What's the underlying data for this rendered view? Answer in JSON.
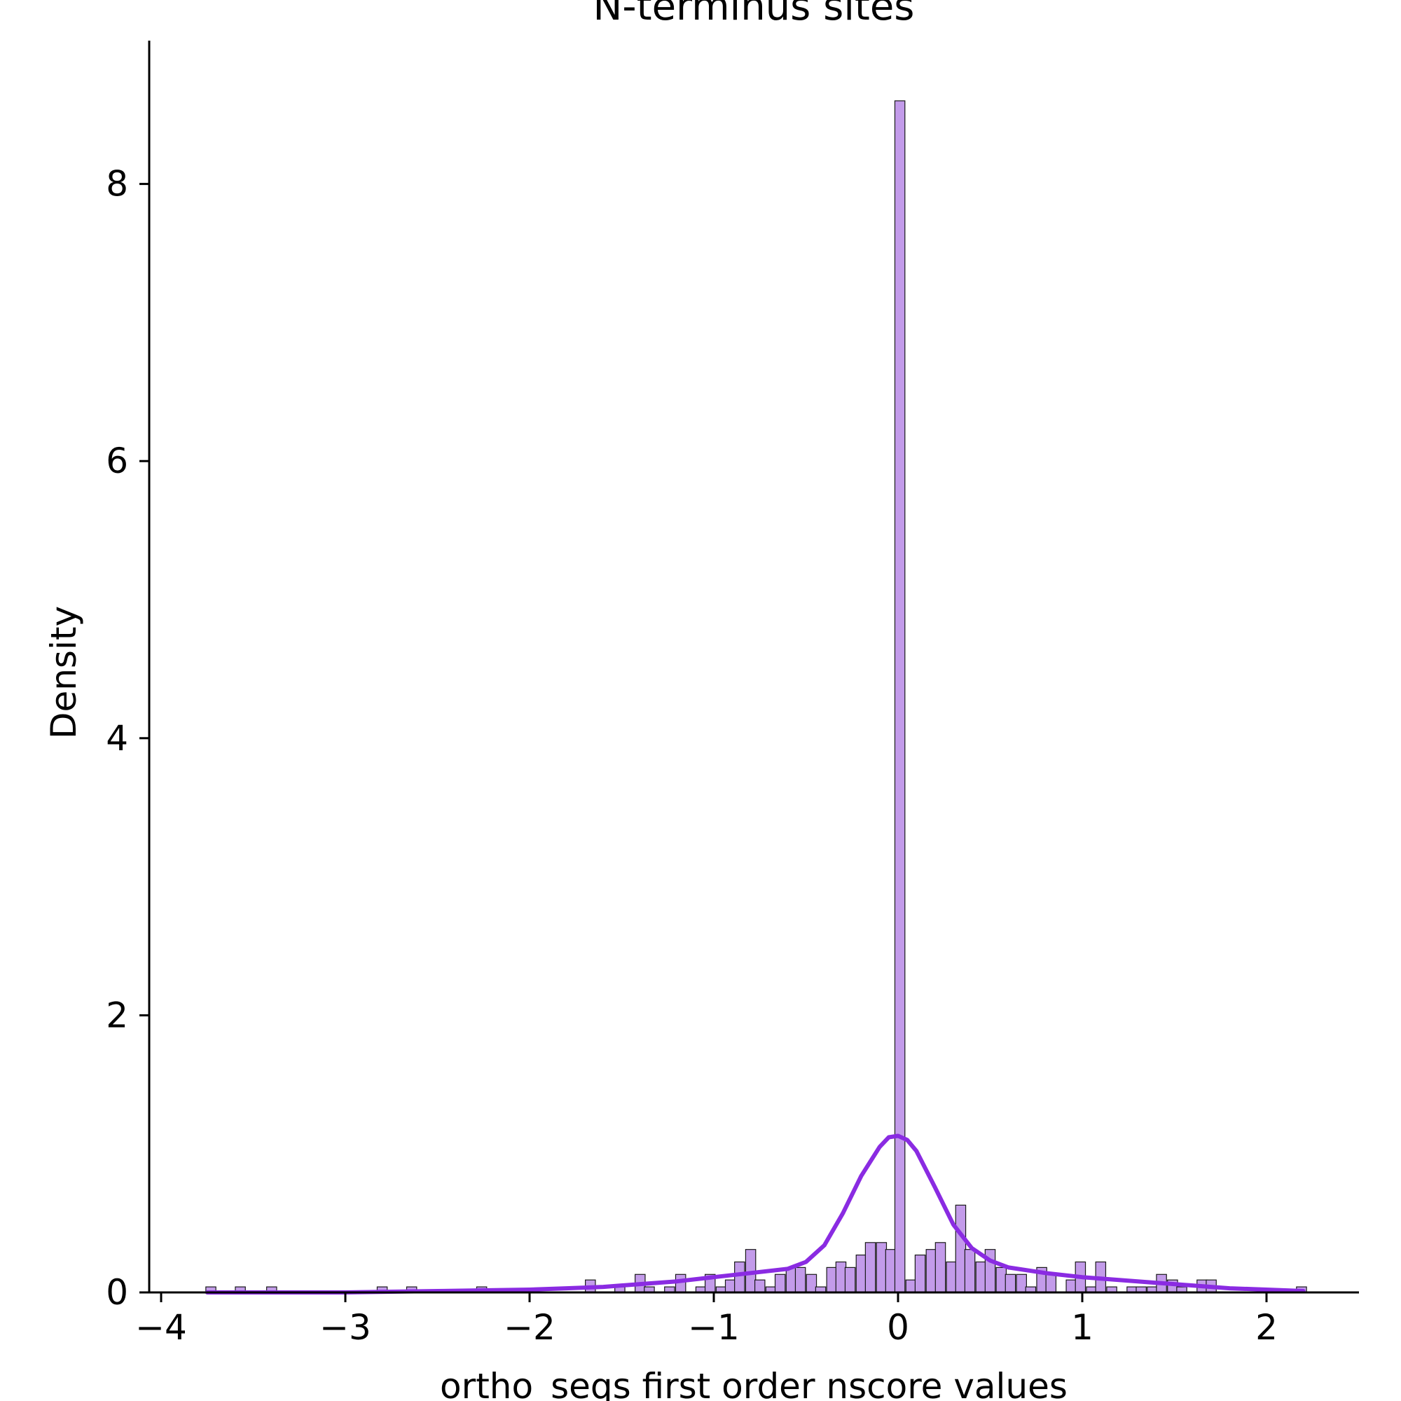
{
  "chart_data": {
    "type": "bar",
    "title": "N-terminus sites",
    "xlabel": "ortho_seqs first order nscore values",
    "ylabel": "Density",
    "xlim": [
      -4.05,
      2.5
    ],
    "ylim": [
      0,
      9.0
    ],
    "xticks": [
      -4,
      -3,
      -2,
      -1,
      0,
      1,
      2
    ],
    "xtick_labels": [
      "−4",
      "−3",
      "−2",
      "−1",
      "0",
      "1",
      "2"
    ],
    "yticks": [
      0,
      2,
      4,
      6,
      8
    ],
    "ytick_labels": [
      "0",
      "2",
      "4",
      "6",
      "8"
    ],
    "grid": false,
    "legend": false,
    "bin_width": 0.0545,
    "colors": {
      "bar_fill": "#c39bea",
      "bar_edge": "#1a1a1a",
      "kde_line": "#8a2be2",
      "axis": "#000000"
    },
    "histogram": {
      "bin_centers": [
        -3.73,
        -3.57,
        -3.4,
        -2.8,
        -2.64,
        -2.26,
        -1.67,
        -1.51,
        -1.4,
        -1.35,
        -1.24,
        -1.18,
        -1.07,
        -1.02,
        -0.96,
        -0.91,
        -0.86,
        -0.8,
        -0.75,
        -0.69,
        -0.64,
        -0.58,
        -0.53,
        -0.47,
        -0.42,
        -0.36,
        -0.31,
        -0.26,
        -0.2,
        -0.15,
        -0.09,
        -0.04,
        0.01,
        0.07,
        0.12,
        0.18,
        0.23,
        0.29,
        0.34,
        0.39,
        0.45,
        0.5,
        0.56,
        0.61,
        0.67,
        0.72,
        0.78,
        0.83,
        0.94,
        0.99,
        1.05,
        1.1,
        1.16,
        1.27,
        1.32,
        1.38,
        1.43,
        1.49,
        1.54,
        1.65,
        1.7,
        2.19
      ],
      "densities": [
        0.04,
        0.04,
        0.04,
        0.04,
        0.04,
        0.04,
        0.09,
        0.04,
        0.13,
        0.04,
        0.04,
        0.13,
        0.04,
        0.13,
        0.04,
        0.09,
        0.22,
        0.31,
        0.09,
        0.04,
        0.13,
        0.18,
        0.18,
        0.13,
        0.04,
        0.18,
        0.22,
        0.18,
        0.27,
        0.36,
        0.36,
        0.31,
        8.6,
        0.09,
        0.27,
        0.31,
        0.36,
        0.22,
        0.63,
        0.31,
        0.22,
        0.31,
        0.18,
        0.13,
        0.13,
        0.04,
        0.18,
        0.13,
        0.09,
        0.22,
        0.04,
        0.22,
        0.04,
        0.04,
        0.04,
        0.04,
        0.13,
        0.09,
        0.04,
        0.09,
        0.09,
        0.04
      ]
    },
    "kde": {
      "x": [
        -3.75,
        -3.0,
        -2.5,
        -2.0,
        -1.8,
        -1.6,
        -1.4,
        -1.2,
        -1.0,
        -0.8,
        -0.6,
        -0.5,
        -0.4,
        -0.3,
        -0.2,
        -0.1,
        -0.05,
        0.0,
        0.05,
        0.1,
        0.2,
        0.3,
        0.4,
        0.5,
        0.6,
        0.8,
        1.0,
        1.2,
        1.4,
        1.6,
        1.8,
        2.0,
        2.2
      ],
      "y": [
        0.0,
        0.0,
        0.01,
        0.02,
        0.03,
        0.04,
        0.06,
        0.08,
        0.11,
        0.14,
        0.17,
        0.22,
        0.34,
        0.57,
        0.84,
        1.05,
        1.12,
        1.13,
        1.1,
        1.02,
        0.76,
        0.49,
        0.32,
        0.23,
        0.18,
        0.14,
        0.11,
        0.09,
        0.07,
        0.05,
        0.03,
        0.02,
        0.01
      ]
    }
  }
}
